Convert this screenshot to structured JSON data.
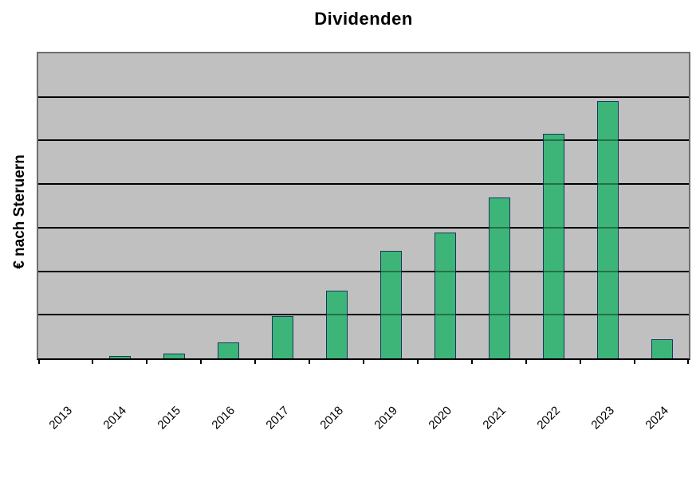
{
  "page": {
    "background": "#FFFFFF"
  },
  "chart_data": {
    "type": "bar",
    "title": "Dividenden",
    "ylabel": "€ nach Steruern",
    "xlabel": "",
    "categories": [
      "2013",
      "2014",
      "2015",
      "2016",
      "2017",
      "2018",
      "2019",
      "2020",
      "2021",
      "2022",
      "2023",
      "2024"
    ],
    "values": [
      0,
      0.045,
      0.11,
      0.36,
      0.96,
      1.56,
      2.46,
      2.89,
      3.69,
      5.15,
      5.9,
      0.43
    ],
    "y_axis": {
      "tick_labels_visible": false,
      "min": 0,
      "max": 7,
      "gridline_interval": 1
    },
    "x_axis": {
      "tick_marks": "outside, at category boundaries",
      "label_rotation_deg": 45
    },
    "legend": "none",
    "grid": "horizontal major gridlines drawn over bars",
    "note": "y-axis shows no numeric labels; values are relative units where 1.0 = one gridline division",
    "colors": {
      "bar_fill": "#3DB579",
      "bar_border": "#17375E",
      "plot_background": "#C0C0C0",
      "gridline": "#000000",
      "plot_border": "#6E6E6E",
      "axis_line": "#000000",
      "text": "#000000"
    }
  }
}
